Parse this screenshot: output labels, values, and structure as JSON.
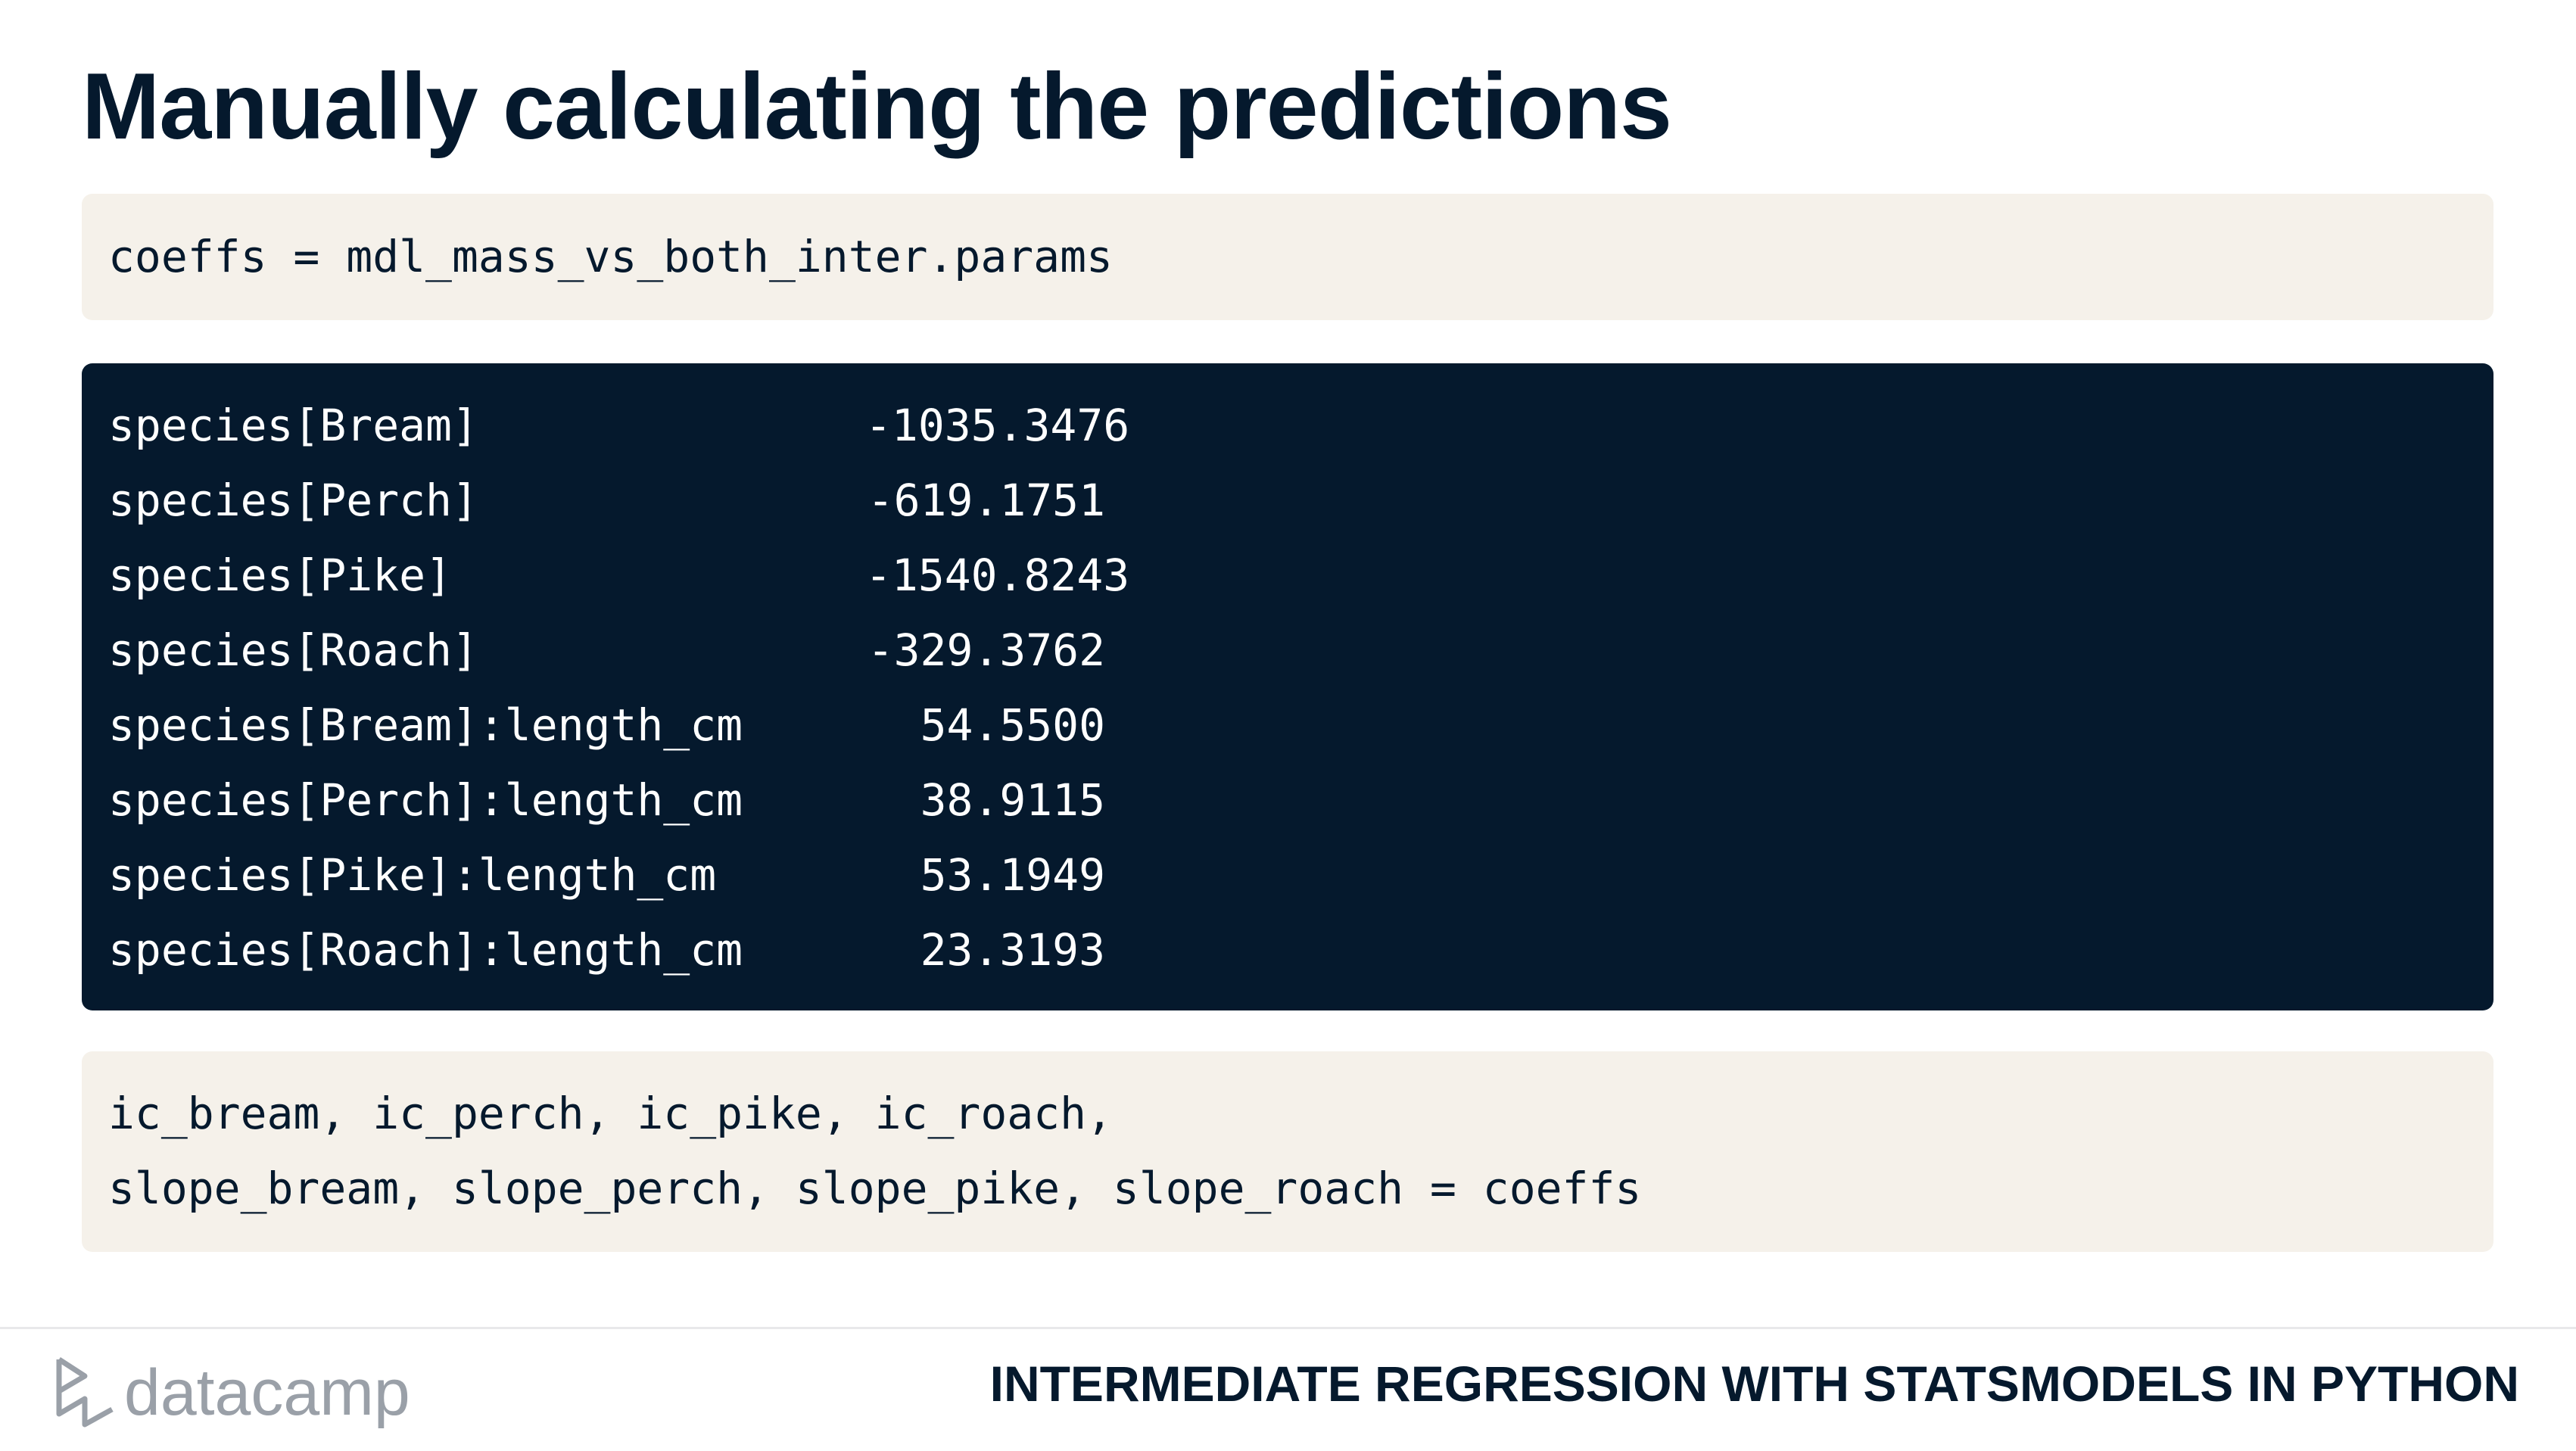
{
  "header": {
    "title": "Manually calculating the predictions"
  },
  "code_input": {
    "lines": [
      "coeffs = mdl_mass_vs_both_inter.params"
    ]
  },
  "output": {
    "rows": [
      [
        "species[Bream]",
        "-1035.3476"
      ],
      [
        "species[Perch]",
        "-619.1751"
      ],
      [
        "species[Pike]",
        "-1540.8243"
      ],
      [
        "species[Roach]",
        "-329.3762"
      ],
      [
        "species[Bream]:length_cm",
        "54.5500"
      ],
      [
        "species[Perch]:length_cm",
        "38.9115"
      ],
      [
        "species[Pike]:length_cm",
        "53.1949"
      ],
      [
        "species[Roach]:length_cm",
        "23.3193"
      ]
    ]
  },
  "code_unpack": {
    "lines": [
      "ic_bream, ic_perch, ic_pike, ic_roach,",
      "slope_bream, slope_perch, slope_pike, slope_roach = coeffs"
    ]
  },
  "footer": {
    "brand": "datacamp",
    "course": "INTERMEDIATE REGRESSION WITH STATSMODELS IN PYTHON"
  }
}
